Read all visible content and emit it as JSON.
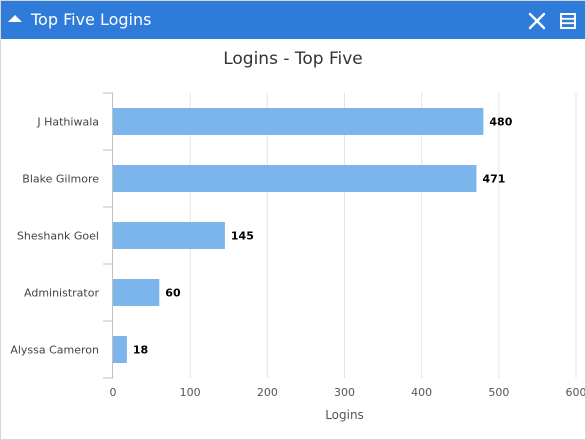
{
  "widget": {
    "title": "Top Five Logins",
    "collapse_icon": "chevron-up-icon",
    "close_icon": "close-icon",
    "menu_icon": "menu-icon",
    "header_color": "#2f7bd9"
  },
  "chart_data": {
    "type": "bar",
    "orientation": "horizontal",
    "title": "Logins - Top Five",
    "categories": [
      "J Hathiwala",
      "Blake Gilmore",
      "Sheshank Goel",
      "Administrator",
      "Alyssa Cameron"
    ],
    "values": [
      480,
      471,
      145,
      60,
      18
    ],
    "data_labels": [
      "480",
      "471",
      "145",
      "60",
      "18"
    ],
    "xlabel": "Logins",
    "ylabel": "",
    "xlim": [
      0,
      600
    ],
    "xticks": [
      0,
      100,
      200,
      300,
      400,
      500,
      600
    ],
    "xtick_labels": [
      "0",
      "100",
      "200",
      "300",
      "400",
      "500",
      "600"
    ],
    "grid": true,
    "bar_color": "#7cb5ec"
  }
}
